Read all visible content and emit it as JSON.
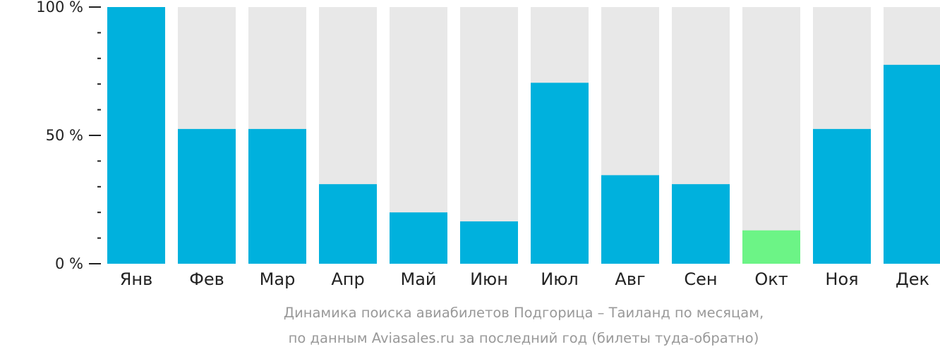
{
  "chart_data": {
    "type": "bar",
    "categories": [
      "Янв",
      "Фев",
      "Мар",
      "Апр",
      "Май",
      "Июн",
      "Июл",
      "Авг",
      "Сен",
      "Окт",
      "Ноя",
      "Дек"
    ],
    "values": [
      100,
      52.5,
      52.5,
      31,
      20,
      16.5,
      70.5,
      34.5,
      31,
      13,
      52.5,
      77.5
    ],
    "highlight_index": 9,
    "ylim": [
      0,
      100
    ],
    "yticks": [
      {
        "value": 0,
        "label": "0 %"
      },
      {
        "value": 50,
        "label": "50 %"
      },
      {
        "value": 100,
        "label": "100 %"
      }
    ],
    "minor_tick_step": 10,
    "title": "Динамика поиска авиабилетов Подгорица – Таиланд по месяцам,",
    "subtitle": "по данным Aviasales.ru за последний год (билеты туда-обратно)",
    "xlabel": "",
    "ylabel": "",
    "grid": false,
    "colors": {
      "bar": "#00b1dd",
      "highlight": "#6cf486",
      "track": "#e8e8e8",
      "tick_line": "#222222",
      "caption": "#999999"
    }
  }
}
